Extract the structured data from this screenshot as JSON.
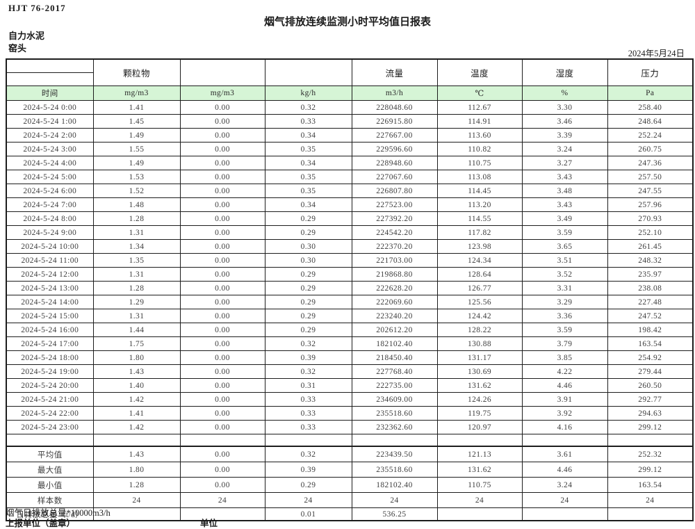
{
  "page": {
    "doc_code": "HJT  76-2017",
    "title": "烟气排放连续监测小时平均值日报表",
    "company": "自力水泥",
    "location": "窑头",
    "date": "2024年5月24日"
  },
  "colors": {
    "header_green": "#d6f5d6",
    "border": "#1c1c1c"
  },
  "table": {
    "group_headers": [
      "",
      "颗粒物",
      "",
      "",
      "流量",
      "温度",
      "湿度",
      "压力"
    ],
    "unit_row": [
      "时间",
      "mg/m3",
      "mg/m3",
      "kg/h",
      "m3/h",
      "℃",
      "%",
      "Pa"
    ],
    "data_rows": [
      [
        "2024-5-24 0:00",
        "1.41",
        "0.00",
        "0.32",
        "228048.60",
        "112.67",
        "3.30",
        "258.40"
      ],
      [
        "2024-5-24 1:00",
        "1.45",
        "0.00",
        "0.33",
        "226915.80",
        "114.91",
        "3.46",
        "248.64"
      ],
      [
        "2024-5-24 2:00",
        "1.49",
        "0.00",
        "0.34",
        "227667.00",
        "113.60",
        "3.39",
        "252.24"
      ],
      [
        "2024-5-24 3:00",
        "1.55",
        "0.00",
        "0.35",
        "229596.60",
        "110.82",
        "3.24",
        "260.75"
      ],
      [
        "2024-5-24 4:00",
        "1.49",
        "0.00",
        "0.34",
        "228948.60",
        "110.75",
        "3.27",
        "247.36"
      ],
      [
        "2024-5-24 5:00",
        "1.53",
        "0.00",
        "0.35",
        "227067.60",
        "113.08",
        "3.43",
        "257.50"
      ],
      [
        "2024-5-24 6:00",
        "1.52",
        "0.00",
        "0.35",
        "226807.80",
        "114.45",
        "3.48",
        "247.55"
      ],
      [
        "2024-5-24 7:00",
        "1.48",
        "0.00",
        "0.34",
        "227523.00",
        "113.20",
        "3.43",
        "257.96"
      ],
      [
        "2024-5-24 8:00",
        "1.28",
        "0.00",
        "0.29",
        "227392.20",
        "114.55",
        "3.49",
        "270.93"
      ],
      [
        "2024-5-24 9:00",
        "1.31",
        "0.00",
        "0.29",
        "224542.20",
        "117.82",
        "3.59",
        "252.10"
      ],
      [
        "2024-5-24 10:00",
        "1.34",
        "0.00",
        "0.30",
        "222370.20",
        "123.98",
        "3.65",
        "261.45"
      ],
      [
        "2024-5-24 11:00",
        "1.35",
        "0.00",
        "0.30",
        "221703.00",
        "124.34",
        "3.51",
        "248.32"
      ],
      [
        "2024-5-24 12:00",
        "1.31",
        "0.00",
        "0.29",
        "219868.80",
        "128.64",
        "3.52",
        "235.97"
      ],
      [
        "2024-5-24 13:00",
        "1.28",
        "0.00",
        "0.29",
        "222628.20",
        "126.77",
        "3.31",
        "238.08"
      ],
      [
        "2024-5-24 14:00",
        "1.29",
        "0.00",
        "0.29",
        "222069.60",
        "125.56",
        "3.29",
        "227.48"
      ],
      [
        "2024-5-24 15:00",
        "1.31",
        "0.00",
        "0.29",
        "223240.20",
        "124.42",
        "3.36",
        "247.52"
      ],
      [
        "2024-5-24 16:00",
        "1.44",
        "0.00",
        "0.29",
        "202612.20",
        "128.22",
        "3.59",
        "198.42"
      ],
      [
        "2024-5-24 17:00",
        "1.75",
        "0.00",
        "0.32",
        "182102.40",
        "130.88",
        "3.79",
        "163.54"
      ],
      [
        "2024-5-24 18:00",
        "1.80",
        "0.00",
        "0.39",
        "218450.40",
        "131.17",
        "3.85",
        "254.92"
      ],
      [
        "2024-5-24 19:00",
        "1.43",
        "0.00",
        "0.32",
        "227768.40",
        "130.69",
        "4.22",
        "279.44"
      ],
      [
        "2024-5-24 20:00",
        "1.40",
        "0.00",
        "0.31",
        "222735.00",
        "131.62",
        "4.46",
        "260.50"
      ],
      [
        "2024-5-24 21:00",
        "1.42",
        "0.00",
        "0.33",
        "234609.00",
        "124.26",
        "3.91",
        "292.77"
      ],
      [
        "2024-5-24 22:00",
        "1.41",
        "0.00",
        "0.33",
        "235518.60",
        "119.75",
        "3.92",
        "294.63"
      ],
      [
        "2024-5-24 23:00",
        "1.42",
        "0.00",
        "0.33",
        "232362.60",
        "120.97",
        "4.16",
        "299.12"
      ]
    ],
    "summary_rows": [
      [
        "平均值",
        "1.43",
        "0.00",
        "0.32",
        "223439.50",
        "121.13",
        "3.61",
        "252.32"
      ],
      [
        "最大值",
        "1.80",
        "0.00",
        "0.39",
        "235518.60",
        "131.62",
        "4.46",
        "299.12"
      ],
      [
        "最小值",
        "1.28",
        "0.00",
        "0.29",
        "182102.40",
        "110.75",
        "3.24",
        "163.54"
      ],
      [
        "样本数",
        "24",
        "24",
        "24",
        "24",
        "24",
        "24",
        "24"
      ],
      [
        "日排放总量（t/d）",
        "",
        "",
        "0.01",
        "536.25",
        "",
        "",
        ""
      ]
    ]
  },
  "footer": {
    "note": "烟气日排放总量*10000m3/h",
    "report_unit_label": "上报单位（盖章）",
    "unit_label": "单位"
  }
}
